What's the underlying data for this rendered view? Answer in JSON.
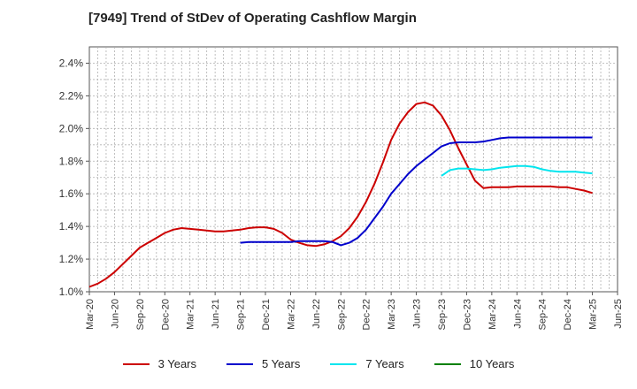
{
  "chart_data": {
    "type": "line",
    "title": "[7949]  Trend of StDev of Operating Cashflow Margin",
    "xlabel": "",
    "ylabel": "",
    "x_ticks": [
      "Mar-20",
      "Jun-20",
      "Sep-20",
      "Dec-20",
      "Mar-21",
      "Jun-21",
      "Sep-21",
      "Dec-21",
      "Mar-22",
      "Jun-22",
      "Sep-22",
      "Dec-22",
      "Mar-23",
      "Jun-23",
      "Sep-23",
      "Dec-23",
      "Mar-24",
      "Jun-24",
      "Sep-24",
      "Dec-24",
      "Mar-25",
      "Jun-25"
    ],
    "y_ticks": [
      "1.0%",
      "1.2%",
      "1.4%",
      "1.6%",
      "1.8%",
      "2.0%",
      "2.2%",
      "2.4%"
    ],
    "ylim": [
      1.0,
      2.5
    ],
    "grid": true,
    "legend_position": "bottom",
    "series": [
      {
        "name": "3 Years",
        "color": "#cc0000",
        "points": [
          [
            "Mar-20",
            1.03
          ],
          [
            "Apr-20",
            1.05
          ],
          [
            "May-20",
            1.08
          ],
          [
            "Jun-20",
            1.12
          ],
          [
            "Jul-20",
            1.17
          ],
          [
            "Aug-20",
            1.22
          ],
          [
            "Sep-20",
            1.27
          ],
          [
            "Oct-20",
            1.3
          ],
          [
            "Nov-20",
            1.33
          ],
          [
            "Dec-20",
            1.36
          ],
          [
            "Jan-21",
            1.38
          ],
          [
            "Feb-21",
            1.39
          ],
          [
            "Mar-21",
            1.385
          ],
          [
            "Apr-21",
            1.38
          ],
          [
            "May-21",
            1.375
          ],
          [
            "Jun-21",
            1.37
          ],
          [
            "Jul-21",
            1.37
          ],
          [
            "Aug-21",
            1.375
          ],
          [
            "Sep-21",
            1.38
          ],
          [
            "Oct-21",
            1.39
          ],
          [
            "Nov-21",
            1.395
          ],
          [
            "Dec-21",
            1.395
          ],
          [
            "Jan-22",
            1.385
          ],
          [
            "Feb-22",
            1.36
          ],
          [
            "Mar-22",
            1.32
          ],
          [
            "Apr-22",
            1.3
          ],
          [
            "May-22",
            1.285
          ],
          [
            "Jun-22",
            1.28
          ],
          [
            "Jul-22",
            1.29
          ],
          [
            "Aug-22",
            1.31
          ],
          [
            "Sep-22",
            1.34
          ],
          [
            "Oct-22",
            1.39
          ],
          [
            "Nov-22",
            1.46
          ],
          [
            "Dec-22",
            1.55
          ],
          [
            "Jan-23",
            1.66
          ],
          [
            "Feb-23",
            1.79
          ],
          [
            "Mar-23",
            1.93
          ],
          [
            "Apr-23",
            2.03
          ],
          [
            "May-23",
            2.1
          ],
          [
            "Jun-23",
            2.15
          ],
          [
            "Jul-23",
            2.16
          ],
          [
            "Aug-23",
            2.14
          ],
          [
            "Sep-23",
            2.08
          ],
          [
            "Oct-23",
            1.99
          ],
          [
            "Nov-23",
            1.88
          ],
          [
            "Dec-23",
            1.78
          ],
          [
            "Jan-24",
            1.68
          ],
          [
            "Feb-24",
            1.635
          ],
          [
            "Mar-24",
            1.64
          ],
          [
            "Apr-24",
            1.64
          ],
          [
            "May-24",
            1.64
          ],
          [
            "Jun-24",
            1.645
          ],
          [
            "Jul-24",
            1.645
          ],
          [
            "Aug-24",
            1.645
          ],
          [
            "Sep-24",
            1.645
          ],
          [
            "Oct-24",
            1.645
          ],
          [
            "Nov-24",
            1.64
          ],
          [
            "Dec-24",
            1.64
          ],
          [
            "Jan-25",
            1.63
          ],
          [
            "Feb-25",
            1.62
          ],
          [
            "Mar-25",
            1.605
          ]
        ]
      },
      {
        "name": "5 Years",
        "color": "#0000cc",
        "points": [
          [
            "Sep-21",
            1.3
          ],
          [
            "Oct-21",
            1.305
          ],
          [
            "Nov-21",
            1.305
          ],
          [
            "Dec-21",
            1.305
          ],
          [
            "Jan-22",
            1.305
          ],
          [
            "Feb-22",
            1.305
          ],
          [
            "Mar-22",
            1.305
          ],
          [
            "Apr-22",
            1.31
          ],
          [
            "May-22",
            1.31
          ],
          [
            "Jun-22",
            1.31
          ],
          [
            "Jul-22",
            1.31
          ],
          [
            "Aug-22",
            1.305
          ],
          [
            "Sep-22",
            1.285
          ],
          [
            "Oct-22",
            1.3
          ],
          [
            "Nov-22",
            1.33
          ],
          [
            "Dec-22",
            1.38
          ],
          [
            "Jan-23",
            1.45
          ],
          [
            "Feb-23",
            1.52
          ],
          [
            "Mar-23",
            1.6
          ],
          [
            "Apr-23",
            1.66
          ],
          [
            "May-23",
            1.72
          ],
          [
            "Jun-23",
            1.77
          ],
          [
            "Jul-23",
            1.81
          ],
          [
            "Aug-23",
            1.85
          ],
          [
            "Sep-23",
            1.89
          ],
          [
            "Oct-23",
            1.91
          ],
          [
            "Nov-23",
            1.915
          ],
          [
            "Dec-23",
            1.915
          ],
          [
            "Jan-24",
            1.915
          ],
          [
            "Feb-24",
            1.92
          ],
          [
            "Mar-24",
            1.93
          ],
          [
            "Apr-24",
            1.94
          ],
          [
            "May-24",
            1.945
          ],
          [
            "Jun-24",
            1.945
          ],
          [
            "Jul-24",
            1.945
          ],
          [
            "Aug-24",
            1.945
          ],
          [
            "Sep-24",
            1.945
          ],
          [
            "Oct-24",
            1.945
          ],
          [
            "Nov-24",
            1.945
          ],
          [
            "Dec-24",
            1.945
          ],
          [
            "Jan-25",
            1.945
          ],
          [
            "Feb-25",
            1.945
          ],
          [
            "Mar-25",
            1.945
          ]
        ]
      },
      {
        "name": "7 Years",
        "color": "#00e5ee",
        "points": [
          [
            "Sep-23",
            1.71
          ],
          [
            "Oct-23",
            1.745
          ],
          [
            "Nov-23",
            1.755
          ],
          [
            "Dec-23",
            1.755
          ],
          [
            "Jan-24",
            1.75
          ],
          [
            "Feb-24",
            1.745
          ],
          [
            "Mar-24",
            1.75
          ],
          [
            "Apr-24",
            1.76
          ],
          [
            "May-24",
            1.765
          ],
          [
            "Jun-24",
            1.77
          ],
          [
            "Jul-24",
            1.77
          ],
          [
            "Aug-24",
            1.765
          ],
          [
            "Sep-24",
            1.75
          ],
          [
            "Oct-24",
            1.74
          ],
          [
            "Nov-24",
            1.735
          ],
          [
            "Dec-24",
            1.735
          ],
          [
            "Jan-25",
            1.735
          ],
          [
            "Feb-25",
            1.73
          ],
          [
            "Mar-25",
            1.725
          ]
        ]
      },
      {
        "name": "10 Years",
        "color": "#008000",
        "points": []
      }
    ]
  }
}
